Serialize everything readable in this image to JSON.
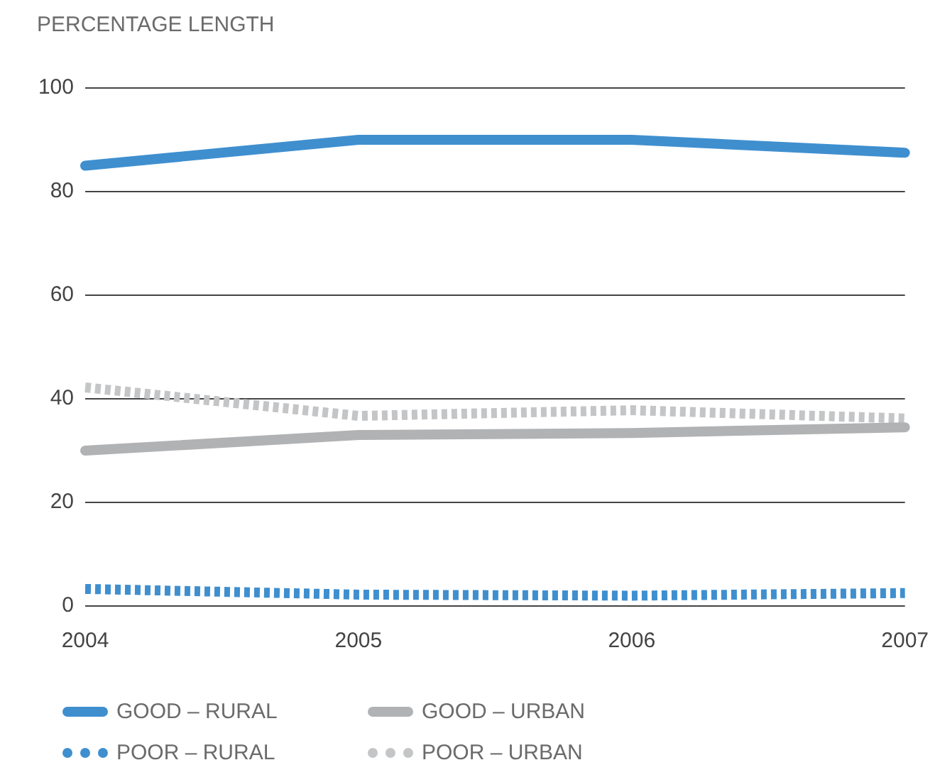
{
  "chart_data": {
    "type": "line",
    "ylabel": "PERCENTAGE LENGTH",
    "categories": [
      "2004",
      "2005",
      "2006",
      "2007"
    ],
    "series": [
      {
        "name": "GOOD – RURAL",
        "color": "#3f8fcf",
        "line_style": "solid",
        "values": [
          85,
          90,
          90,
          87.5
        ]
      },
      {
        "name": "GOOD – URBAN",
        "color": "#b1b2b4",
        "line_style": "solid",
        "values": [
          30,
          33,
          33.4,
          34.5
        ]
      },
      {
        "name": "POOR – RURAL",
        "color": "#3f8fcf",
        "line_style": "dotted",
        "values": [
          3.3,
          2.2,
          2,
          2.5
        ]
      },
      {
        "name": "POOR – URBAN",
        "color": "#c4c5c7",
        "line_style": "dotted",
        "values": [
          42.2,
          36.7,
          37.8,
          36.2
        ]
      }
    ],
    "ylim": [
      0,
      100
    ],
    "yticks": [
      0,
      20,
      40,
      60,
      80,
      100
    ],
    "grid": "y",
    "legend": "bottom",
    "marker": "none"
  }
}
